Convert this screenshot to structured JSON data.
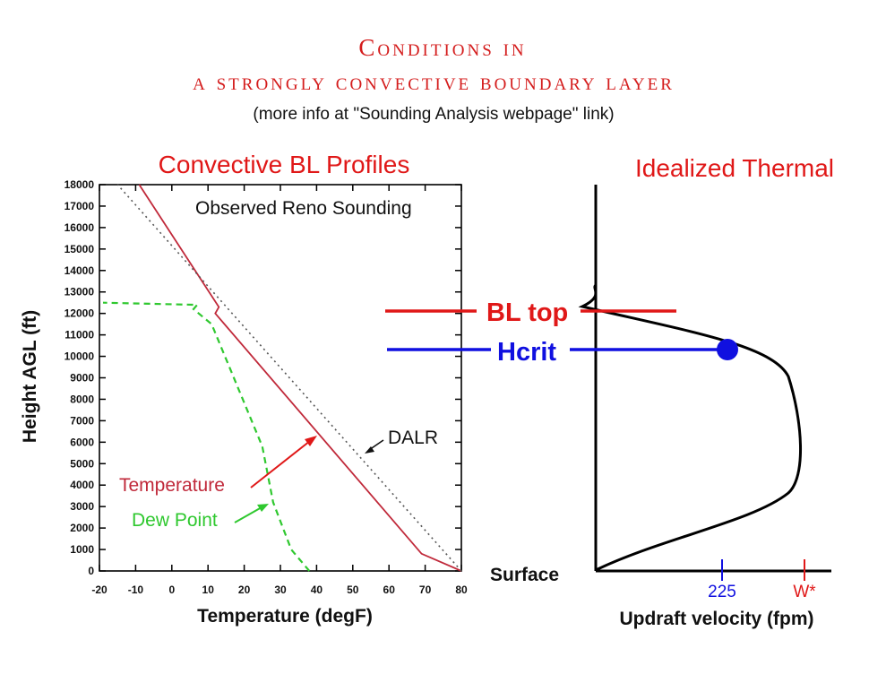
{
  "titles": {
    "main_line1": "Conditions in",
    "main_line2": "a strongly convective boundary layer",
    "subtitle": "(more info at \"Sounding Analysis webpage\" link)"
  },
  "chart_data": [
    {
      "type": "line",
      "title": "Convective BL Profiles",
      "annotation": "Observed Reno Sounding",
      "xlabel": "Temperature  (degF)",
      "ylabel": "Height AGL (ft)",
      "xlim": [
        -20,
        80
      ],
      "ylim": [
        0,
        18000
      ],
      "x_ticks": [
        -20,
        -10,
        0,
        10,
        20,
        30,
        40,
        50,
        60,
        70,
        80
      ],
      "y_ticks": [
        0,
        1000,
        2000,
        3000,
        4000,
        5000,
        6000,
        7000,
        8000,
        9000,
        10000,
        11000,
        12000,
        13000,
        14000,
        15000,
        16000,
        17000,
        18000
      ],
      "series": [
        {
          "name": "Temperature",
          "color": "#c0293a",
          "style": "solid",
          "points": [
            [
              80,
              0
            ],
            [
              69,
              800
            ],
            [
              12,
              12000
            ],
            [
              13,
              12300
            ],
            [
              -9,
              18000
            ]
          ]
        },
        {
          "name": "Dew Point",
          "color": "#2fc82f",
          "style": "dashed",
          "points": [
            [
              38,
              0
            ],
            [
              33,
              1000
            ],
            [
              28,
              3200
            ],
            [
              25,
              5800
            ],
            [
              11,
              11500
            ],
            [
              6,
              12200
            ],
            [
              7,
              12400
            ],
            [
              -19,
              12500
            ]
          ]
        },
        {
          "name": "DALR",
          "color": "#555555",
          "style": "dotted",
          "points": [
            [
              80,
              0
            ],
            [
              -15,
              18000
            ]
          ]
        }
      ]
    },
    {
      "type": "line",
      "title": "Idealized Thermal",
      "xlabel": "Updraft velocity (fpm)",
      "x_ticks": [
        "225",
        "W*"
      ],
      "baseline_label": "Surface",
      "levels": [
        {
          "name": "BL top",
          "color": "#e01818"
        },
        {
          "name": "Hcrit",
          "color": "#1010e0"
        }
      ],
      "curve_color": "#000000"
    }
  ]
}
